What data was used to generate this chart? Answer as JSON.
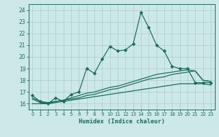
{
  "xlabel": "Humidex (Indice chaleur)",
  "ylabel": "",
  "background_color": "#cde8e8",
  "grid_color": "#aacccc",
  "line_color": "#1a6b5a",
  "xlim": [
    -0.5,
    23.5
  ],
  "ylim": [
    15.5,
    24.5
  ],
  "xticks": [
    0,
    1,
    2,
    3,
    4,
    5,
    6,
    7,
    8,
    9,
    10,
    11,
    12,
    13,
    14,
    15,
    16,
    17,
    18,
    19,
    20,
    21,
    22,
    23
  ],
  "yticks": [
    16,
    17,
    18,
    19,
    20,
    21,
    22,
    23,
    24
  ],
  "series1_x": [
    0,
    1,
    2,
    3,
    4,
    5,
    6,
    7,
    8,
    9,
    10,
    11,
    12,
    13,
    14,
    15,
    16,
    17,
    18,
    19,
    20,
    21,
    22,
    23
  ],
  "series1_y": [
    16.7,
    16.2,
    16.0,
    16.5,
    16.2,
    16.8,
    17.0,
    19.0,
    18.6,
    19.8,
    20.9,
    20.5,
    20.6,
    21.1,
    23.8,
    22.5,
    21.0,
    20.5,
    19.2,
    19.0,
    19.0,
    17.8,
    17.8,
    17.8
  ],
  "series2_x": [
    0,
    1,
    2,
    3,
    4,
    5,
    6,
    7,
    8,
    9,
    10,
    11,
    12,
    13,
    14,
    15,
    16,
    17,
    18,
    19,
    20,
    21,
    22,
    23
  ],
  "series2_y": [
    16.4,
    16.1,
    16.0,
    16.2,
    16.3,
    16.4,
    16.5,
    16.7,
    16.8,
    17.0,
    17.2,
    17.3,
    17.5,
    17.7,
    17.9,
    18.1,
    18.2,
    18.3,
    18.5,
    18.6,
    18.7,
    18.8,
    18.0,
    17.9
  ],
  "series3_x": [
    0,
    1,
    2,
    3,
    4,
    5,
    6,
    7,
    8,
    9,
    10,
    11,
    12,
    13,
    14,
    15,
    16,
    17,
    18,
    19,
    20,
    21,
    22,
    23
  ],
  "series3_y": [
    16.5,
    16.2,
    16.1,
    16.2,
    16.3,
    16.5,
    16.7,
    16.9,
    17.0,
    17.2,
    17.4,
    17.5,
    17.7,
    17.9,
    18.1,
    18.3,
    18.5,
    18.6,
    18.7,
    18.8,
    18.9,
    18.8,
    18.0,
    17.9
  ],
  "series4_x": [
    0,
    1,
    2,
    3,
    4,
    5,
    6,
    7,
    8,
    9,
    10,
    11,
    12,
    13,
    14,
    15,
    16,
    17,
    18,
    19,
    20,
    21,
    22,
    23
  ],
  "series4_y": [
    16.0,
    16.0,
    16.0,
    16.1,
    16.2,
    16.3,
    16.4,
    16.5,
    16.6,
    16.7,
    16.8,
    16.9,
    17.0,
    17.1,
    17.2,
    17.3,
    17.4,
    17.5,
    17.6,
    17.7,
    17.7,
    17.7,
    17.7,
    17.6
  ]
}
